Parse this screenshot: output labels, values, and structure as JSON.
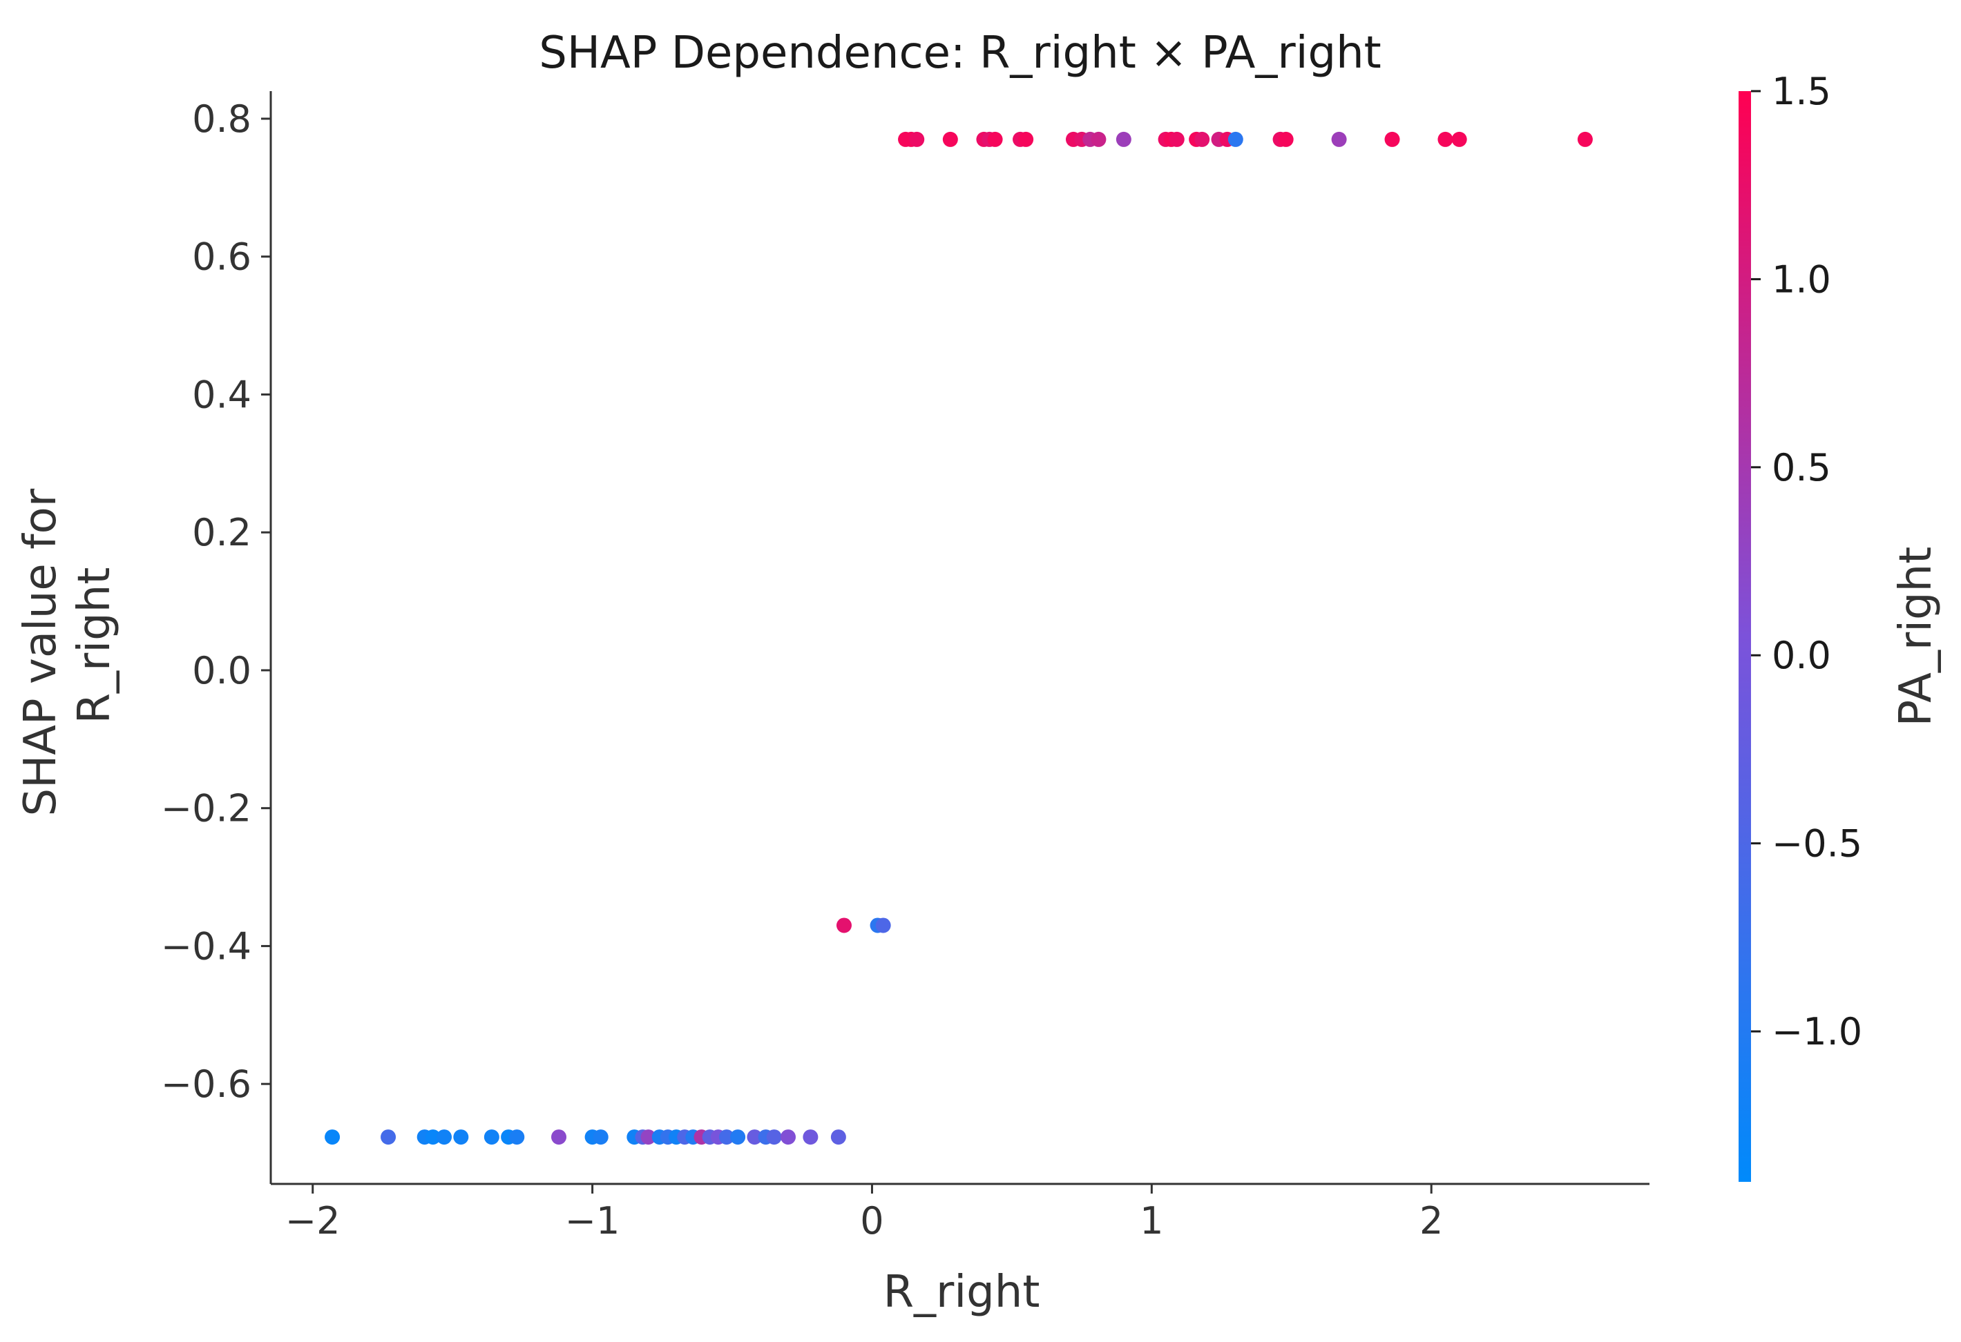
{
  "chart_data": {
    "type": "scatter",
    "title": "SHAP Dependence: R_right × PA_right",
    "xlabel": "R_right",
    "ylabel": [
      "SHAP value for",
      "R_right"
    ],
    "colorbar_label": "PA_right",
    "xlim": [
      -2.15,
      2.78
    ],
    "ylim": [
      -0.745,
      0.84
    ],
    "xticks": [
      -2,
      -1,
      0,
      1,
      2
    ],
    "xtick_labels": [
      "−2",
      "−1",
      "0",
      "1",
      "2"
    ],
    "yticks": [
      0.8,
      0.6,
      0.4,
      0.2,
      0.0,
      -0.2,
      -0.4,
      -0.6
    ],
    "ytick_labels": [
      "0.8",
      "0.6",
      "0.4",
      "0.2",
      "0.0",
      "−0.2",
      "−0.4",
      "−0.6"
    ],
    "colorbar_range": [
      -1.4,
      1.5
    ],
    "colorbar_ticks": [
      1.5,
      1.0,
      0.5,
      0.0,
      -0.5,
      -1.0
    ],
    "colorbar_tick_labels": [
      "1.5",
      "1.0",
      "0.5",
      "0.0",
      "−0.5",
      "−1.0"
    ],
    "colormap_stops": [
      "#008afb",
      "#7c52da",
      "#ff0052"
    ],
    "spines": "left-bottom",
    "grid": false,
    "points": [
      {
        "x": 0.12,
        "y": 0.77,
        "c": 1.4
      },
      {
        "x": 0.14,
        "y": 0.77,
        "c": 1.4
      },
      {
        "x": 0.16,
        "y": 0.77,
        "c": 1.3
      },
      {
        "x": 0.28,
        "y": 0.77,
        "c": 1.4
      },
      {
        "x": 0.4,
        "y": 0.77,
        "c": 1.3
      },
      {
        "x": 0.42,
        "y": 0.77,
        "c": 1.2
      },
      {
        "x": 0.44,
        "y": 0.77,
        "c": 1.4
      },
      {
        "x": 0.53,
        "y": 0.77,
        "c": 1.3
      },
      {
        "x": 0.55,
        "y": 0.77,
        "c": 1.4
      },
      {
        "x": 0.72,
        "y": 0.77,
        "c": 1.3
      },
      {
        "x": 0.75,
        "y": 0.77,
        "c": 1.2
      },
      {
        "x": 0.78,
        "y": 0.77,
        "c": 0.8
      },
      {
        "x": 0.81,
        "y": 0.77,
        "c": 0.9
      },
      {
        "x": 0.9,
        "y": 0.77,
        "c": 0.4
      },
      {
        "x": 1.05,
        "y": 0.77,
        "c": 1.3
      },
      {
        "x": 1.07,
        "y": 0.77,
        "c": 1.4
      },
      {
        "x": 1.09,
        "y": 0.77,
        "c": 1.3
      },
      {
        "x": 1.16,
        "y": 0.77,
        "c": 1.4
      },
      {
        "x": 1.18,
        "y": 0.77,
        "c": 1.2
      },
      {
        "x": 1.24,
        "y": 0.77,
        "c": 1.0
      },
      {
        "x": 1.27,
        "y": 0.77,
        "c": 1.3
      },
      {
        "x": 1.3,
        "y": 0.77,
        "c": -0.9
      },
      {
        "x": 1.46,
        "y": 0.77,
        "c": 1.3
      },
      {
        "x": 1.48,
        "y": 0.77,
        "c": 1.4
      },
      {
        "x": 1.67,
        "y": 0.77,
        "c": 0.4
      },
      {
        "x": 1.86,
        "y": 0.77,
        "c": 1.4
      },
      {
        "x": 2.05,
        "y": 0.77,
        "c": 1.4
      },
      {
        "x": 2.1,
        "y": 0.77,
        "c": 1.4
      },
      {
        "x": 2.55,
        "y": 0.77,
        "c": 1.4
      },
      {
        "x": -0.1,
        "y": -0.37,
        "c": 1.2
      },
      {
        "x": 0.02,
        "y": -0.37,
        "c": -0.9
      },
      {
        "x": 0.04,
        "y": -0.37,
        "c": -0.5
      },
      {
        "x": -1.93,
        "y": -0.677,
        "c": -1.3
      },
      {
        "x": -1.73,
        "y": -0.677,
        "c": -0.6
      },
      {
        "x": -1.6,
        "y": -0.677,
        "c": -1.2
      },
      {
        "x": -1.57,
        "y": -0.677,
        "c": -1.3
      },
      {
        "x": -1.53,
        "y": -0.677,
        "c": -1.2
      },
      {
        "x": -1.47,
        "y": -0.677,
        "c": -1.2
      },
      {
        "x": -1.36,
        "y": -0.677,
        "c": -1.2
      },
      {
        "x": -1.3,
        "y": -0.677,
        "c": -1.3
      },
      {
        "x": -1.27,
        "y": -0.677,
        "c": -1.1
      },
      {
        "x": -1.12,
        "y": -0.677,
        "c": 0.2
      },
      {
        "x": -1.0,
        "y": -0.677,
        "c": -1.2
      },
      {
        "x": -0.97,
        "y": -0.677,
        "c": -1.1
      },
      {
        "x": -0.85,
        "y": -0.677,
        "c": -1.2
      },
      {
        "x": -0.82,
        "y": -0.677,
        "c": -0.4
      },
      {
        "x": -0.8,
        "y": -0.677,
        "c": 0.3
      },
      {
        "x": -0.76,
        "y": -0.677,
        "c": -1.1
      },
      {
        "x": -0.73,
        "y": -0.677,
        "c": -0.8
      },
      {
        "x": -0.7,
        "y": -0.677,
        "c": -1.2
      },
      {
        "x": -0.67,
        "y": -0.677,
        "c": -0.5
      },
      {
        "x": -0.64,
        "y": -0.677,
        "c": -1.0
      },
      {
        "x": -0.61,
        "y": -0.677,
        "c": 0.6
      },
      {
        "x": -0.58,
        "y": -0.677,
        "c": -0.3
      },
      {
        "x": -0.55,
        "y": -0.677,
        "c": 0.0
      },
      {
        "x": -0.52,
        "y": -0.677,
        "c": -0.6
      },
      {
        "x": -0.48,
        "y": -0.677,
        "c": -1.0
      },
      {
        "x": -0.42,
        "y": -0.677,
        "c": -0.2
      },
      {
        "x": -0.38,
        "y": -0.677,
        "c": -0.7
      },
      {
        "x": -0.35,
        "y": -0.677,
        "c": -0.4
      },
      {
        "x": -0.3,
        "y": -0.677,
        "c": 0.1
      },
      {
        "x": -0.22,
        "y": -0.677,
        "c": -0.1
      },
      {
        "x": -0.12,
        "y": -0.677,
        "c": -0.3
      }
    ]
  }
}
